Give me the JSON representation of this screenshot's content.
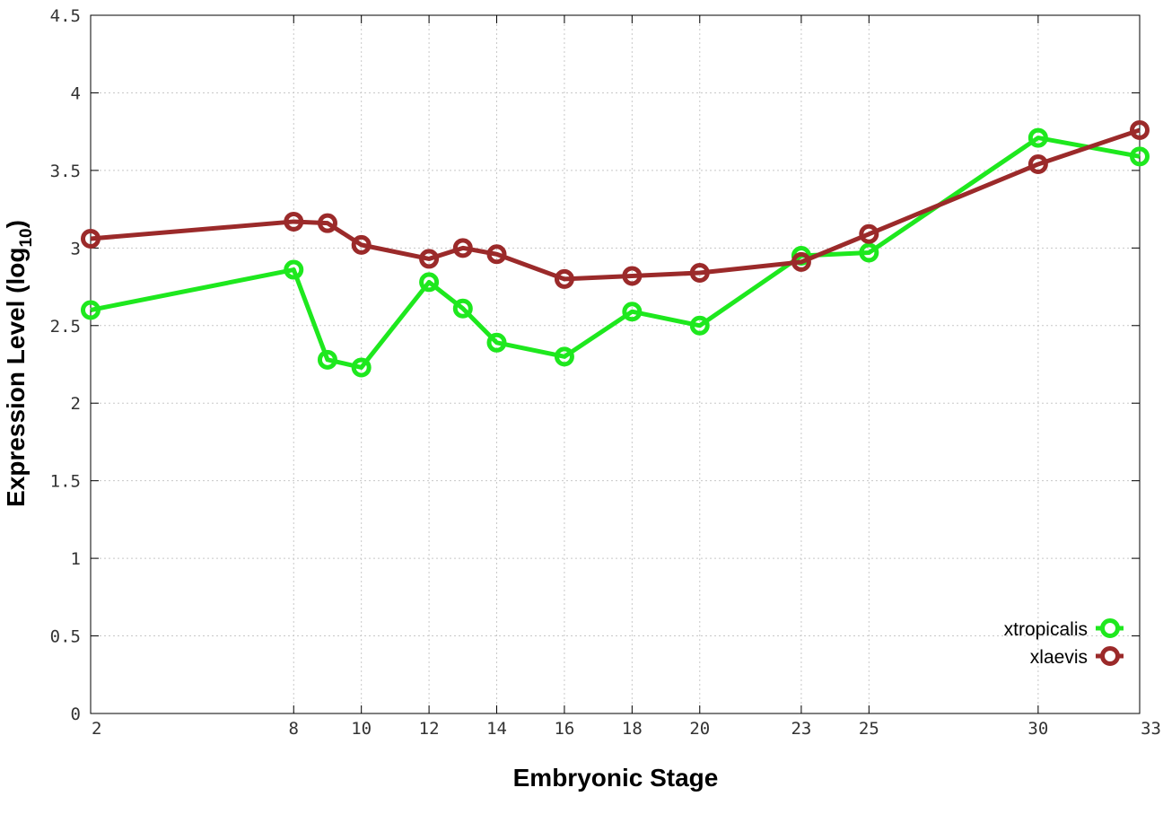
{
  "chart_data": {
    "type": "line",
    "xlabel": "Embryonic Stage",
    "ylabel_main": "Expression Level (log",
    "ylabel_sub": "10",
    "ylabel_close": ")",
    "ylim": [
      0,
      4.5
    ],
    "xlim": [
      2,
      33
    ],
    "x_ticks": [
      2,
      8,
      10,
      12,
      14,
      16,
      18,
      20,
      23,
      25,
      30,
      33
    ],
    "x_tick_labels": [
      "2",
      "8",
      "10",
      "12",
      "14",
      "16",
      "18",
      "20",
      "23",
      "25",
      "30",
      "33"
    ],
    "y_ticks": [
      0,
      0.5,
      1,
      1.5,
      2,
      2.5,
      3,
      3.5,
      4,
      4.5
    ],
    "y_tick_labels": [
      "0",
      "0.5",
      "1",
      "1.5",
      "2",
      "2.5",
      "3",
      "3.5",
      "4",
      "4.5"
    ],
    "grid": true,
    "legend_position": "bottom-right",
    "x": [
      2,
      8,
      9,
      10,
      12,
      13,
      14,
      16,
      18,
      20,
      23,
      25,
      30,
      33
    ],
    "series": [
      {
        "name": "xtropicalis",
        "color": "#1ee81e",
        "values": [
          2.6,
          2.86,
          2.28,
          2.23,
          2.78,
          2.61,
          2.39,
          2.3,
          2.59,
          2.5,
          2.95,
          2.97,
          3.71,
          3.59
        ]
      },
      {
        "name": "xlaevis",
        "color": "#9b2a2a",
        "values": [
          3.06,
          3.17,
          3.16,
          3.02,
          2.93,
          3.0,
          2.96,
          2.8,
          2.82,
          2.84,
          2.91,
          3.09,
          3.54,
          3.76
        ]
      }
    ]
  }
}
